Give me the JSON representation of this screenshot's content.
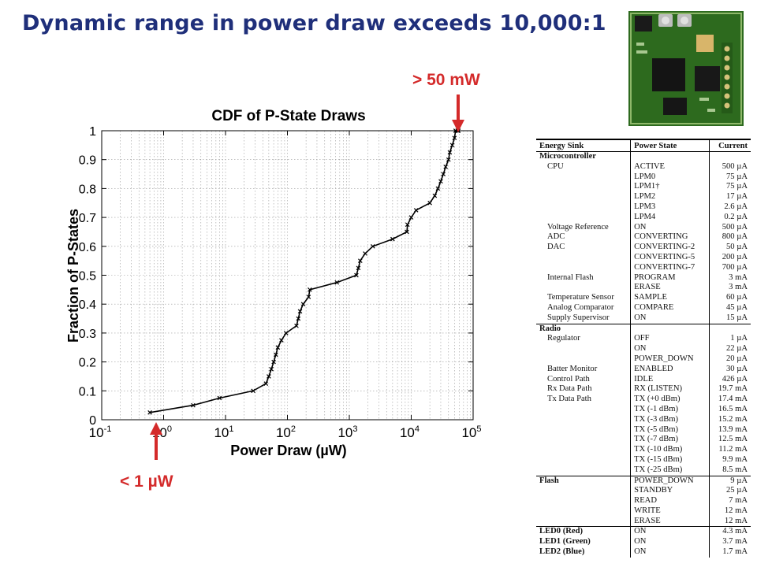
{
  "slide": {
    "title": "Dynamic range in power draw exceeds 10,000:1",
    "callout_top": "> 50 mW",
    "callout_bottom": "< 1 µW"
  },
  "colors": {
    "title": "#1f2f7a",
    "callout": "#d42a2a",
    "line": "#000000"
  },
  "chart_data": {
    "type": "line",
    "title": "CDF of P-State Draws",
    "xlabel": "Power Draw (µW)",
    "ylabel": "Fraction of P-States",
    "xscale": "log",
    "xlim": [
      0.1,
      100000
    ],
    "ylim": [
      0,
      1
    ],
    "grid": "dotted",
    "xticks": [
      "10-1",
      "100",
      "101",
      "102",
      "103",
      "104",
      "105"
    ],
    "yticks": [
      "0",
      "0.1",
      "0.2",
      "0.3",
      "0.4",
      "0.5",
      "0.6",
      "0.7",
      "0.8",
      "0.9",
      "1"
    ],
    "series": [
      {
        "x": [
          0.6,
          3,
          8,
          28,
          45,
          50,
          55,
          60,
          65,
          70,
          80,
          95,
          140,
          150,
          160,
          180,
          220,
          230,
          630,
          1300,
          1400,
          1500,
          1800,
          2400,
          5000,
          8500,
          8700,
          10000,
          12000,
          20000,
          24000,
          27000,
          30000,
          33000,
          36000,
          40000,
          42000,
          46000,
          50000,
          52000,
          56000,
          58000
        ],
        "y": [
          0.025,
          0.05,
          0.075,
          0.1,
          0.125,
          0.15,
          0.175,
          0.2,
          0.225,
          0.25,
          0.275,
          0.3,
          0.325,
          0.35,
          0.375,
          0.4,
          0.425,
          0.45,
          0.475,
          0.5,
          0.525,
          0.55,
          0.575,
          0.6,
          0.625,
          0.65,
          0.675,
          0.7,
          0.725,
          0.75,
          0.775,
          0.8,
          0.825,
          0.85,
          0.875,
          0.9,
          0.925,
          0.95,
          0.975,
          1.0,
          1.0,
          1.0
        ]
      }
    ]
  },
  "table": {
    "headers": [
      "Energy Sink",
      "Power State",
      "Current"
    ],
    "rows": [
      {
        "type": "group",
        "sink": "Microcontroller",
        "state": "",
        "current": ""
      },
      {
        "sink": "CPU",
        "state": "ACTIVE",
        "current": "500 µA"
      },
      {
        "sink": "",
        "state": "LPM0",
        "current": "75 µA"
      },
      {
        "sink": "",
        "state": "LPM1†",
        "current": "75 µA"
      },
      {
        "sink": "",
        "state": "LPM2",
        "current": "17 µA"
      },
      {
        "sink": "",
        "state": "LPM3",
        "current": "2.6 µA"
      },
      {
        "sink": "",
        "state": "LPM4",
        "current": "0.2 µA"
      },
      {
        "sink": "Voltage Reference",
        "state": "ON",
        "current": "500 µA"
      },
      {
        "sink": "ADC",
        "state": "CONVERTING",
        "current": "800 µA"
      },
      {
        "sink": "DAC",
        "state": "CONVERTING-2",
        "current": "50 µA"
      },
      {
        "sink": "",
        "state": "CONVERTING-5",
        "current": "200 µA"
      },
      {
        "sink": "",
        "state": "CONVERTING-7",
        "current": "700 µA"
      },
      {
        "sink": "Internal Flash",
        "state": "PROGRAM",
        "current": "3 mA"
      },
      {
        "sink": "",
        "state": "ERASE",
        "current": "3 mA"
      },
      {
        "sink": "Temperature Sensor",
        "state": "SAMPLE",
        "current": "60 µA"
      },
      {
        "sink": "Analog Comparator",
        "state": "COMPARE",
        "current": "45 µA"
      },
      {
        "sink": "Supply Supervisor",
        "state": "ON",
        "current": "15 µA"
      },
      {
        "type": "group",
        "sink": "Radio",
        "state": "",
        "current": ""
      },
      {
        "sink": "Regulator",
        "state": "OFF",
        "current": "1 µA"
      },
      {
        "sink": "",
        "state": "ON",
        "current": "22 µA"
      },
      {
        "sink": "",
        "state": "POWER_DOWN",
        "current": "20 µA"
      },
      {
        "sink": "Batter Monitor",
        "state": "ENABLED",
        "current": "30 µA"
      },
      {
        "sink": "Control Path",
        "state": "IDLE",
        "current": "426 µA"
      },
      {
        "sink": "Rx Data Path",
        "state": "RX (LISTEN)",
        "current": "19.7 mA"
      },
      {
        "sink": "Tx Data Path",
        "state": "TX (+0 dBm)",
        "current": "17.4 mA"
      },
      {
        "sink": "",
        "state": "TX (-1 dBm)",
        "current": "16.5 mA"
      },
      {
        "sink": "",
        "state": "TX (-3 dBm)",
        "current": "15.2 mA"
      },
      {
        "sink": "",
        "state": "TX (-5 dBm)",
        "current": "13.9 mA"
      },
      {
        "sink": "",
        "state": "TX (-7 dBm)",
        "current": "12.5 mA"
      },
      {
        "sink": "",
        "state": "TX (-10 dBm)",
        "current": "11.2 mA"
      },
      {
        "sink": "",
        "state": "TX (-15 dBm)",
        "current": "9.9 mA"
      },
      {
        "sink": "",
        "state": "TX (-25 dBm)",
        "current": "8.5 mA"
      },
      {
        "type": "group",
        "sink": "Flash",
        "state": "POWER_DOWN",
        "current": "9 µA"
      },
      {
        "sink": "",
        "state": "STANDBY",
        "current": "25 µA"
      },
      {
        "sink": "",
        "state": "READ",
        "current": "7 mA"
      },
      {
        "sink": "",
        "state": "WRITE",
        "current": "12 mA"
      },
      {
        "sink": "",
        "state": "ERASE",
        "current": "12 mA"
      },
      {
        "type": "group",
        "sink": "LED0 (Red)",
        "state": "ON",
        "current": "4.3 mA"
      },
      {
        "type": "groupcont",
        "sink": "LED1 (Green)",
        "state": "ON",
        "current": "3.7 mA"
      },
      {
        "type": "groupcont",
        "sink": "LED2 (Blue)",
        "state": "ON",
        "current": "1.7 mA"
      }
    ]
  }
}
